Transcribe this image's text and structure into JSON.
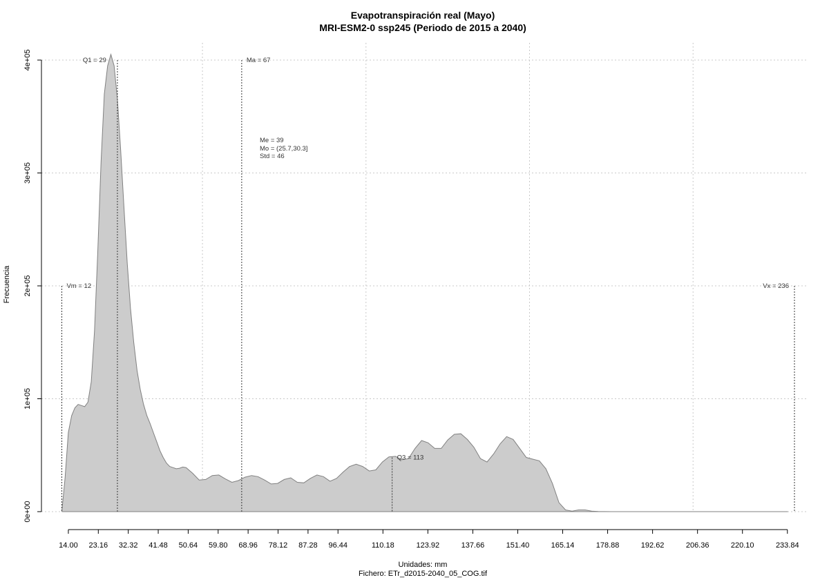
{
  "chart_data": {
    "type": "area",
    "title": "Evapotranspiración real (Mayo)",
    "subtitle": "MRI-ESM2-0 ssp245 (Periodo de 2015 a 2040)",
    "xlabel": "Unidades: mm",
    "ylabel": "Frecuencia",
    "footer": "Fichero: ETr_d2015-2040_05_COG.tif",
    "xlim": [
      10,
      236
    ],
    "ylim": [
      0,
      400000
    ],
    "x_ticks": [
      14.0,
      23.16,
      32.32,
      41.48,
      50.64,
      59.8,
      68.96,
      78.12,
      87.28,
      96.44,
      110.18,
      123.92,
      137.66,
      151.4,
      165.14,
      178.88,
      192.62,
      206.36,
      220.1,
      233.84
    ],
    "x_tick_labels": [
      "14.00",
      "23.16",
      "32.32",
      "41.48",
      "50.64",
      "59.80",
      "68.96",
      "78.12",
      "87.28",
      "96.44",
      "110.18",
      "123.92",
      "137.66",
      "151.40",
      "165.14",
      "178.88",
      "192.62",
      "206.36",
      "220.10",
      "233.84"
    ],
    "y_ticks": [
      0,
      100000,
      200000,
      300000,
      400000
    ],
    "y_tick_labels": [
      "0e+00",
      "1e+05",
      "2e+05",
      "3e+05",
      "4e+05"
    ],
    "x_grid": [
      55,
      105,
      155,
      205
    ],
    "grid": true,
    "fill_color": "#cccccc",
    "line_color": "#808080",
    "series": [
      {
        "x": [
          12,
          13,
          14,
          15,
          16,
          17,
          18,
          19,
          20,
          21,
          22,
          23,
          24,
          25,
          26,
          27,
          28,
          29,
          30,
          31,
          32,
          33,
          34,
          35,
          36,
          37,
          38,
          39,
          40,
          41,
          42,
          43,
          44,
          45,
          46,
          47,
          48,
          49,
          50,
          52,
          54,
          56,
          58,
          60,
          62,
          64,
          66,
          68,
          70,
          72,
          74,
          76,
          78,
          80,
          82,
          84,
          86,
          88,
          90,
          92,
          94,
          96,
          98,
          100,
          102,
          104,
          106,
          108,
          110,
          112,
          114,
          116,
          118,
          120,
          122,
          124,
          126,
          128,
          130,
          132,
          134,
          136,
          138,
          140,
          142,
          144,
          146,
          148,
          150,
          152,
          154,
          156,
          158,
          160,
          162,
          164,
          166,
          168,
          170,
          172,
          174,
          176,
          180,
          190,
          200,
          210,
          220,
          230,
          234
        ],
        "y": [
          0,
          30000,
          70000,
          85000,
          92000,
          95000,
          94000,
          93000,
          97000,
          115000,
          160000,
          230000,
          310000,
          370000,
          395000,
          405000,
          395000,
          365000,
          320000,
          270000,
          220000,
          180000,
          150000,
          125000,
          108000,
          95000,
          85000,
          78000,
          70000,
          62000,
          54000,
          48000,
          43000,
          40000,
          39000,
          38000,
          38500,
          39500,
          39000,
          34000,
          28000,
          28500,
          32000,
          32500,
          29000,
          26000,
          27500,
          30500,
          32000,
          31000,
          28000,
          24500,
          25000,
          28500,
          30000,
          26000,
          25500,
          29500,
          32500,
          31000,
          27000,
          29500,
          35000,
          40000,
          42000,
          40000,
          36000,
          37000,
          44000,
          48500,
          49000,
          46000,
          47000,
          56000,
          63000,
          61000,
          56000,
          56000,
          63500,
          68500,
          69000,
          64000,
          57000,
          47000,
          44000,
          51000,
          60000,
          66500,
          64000,
          56000,
          48000,
          46500,
          45000,
          38000,
          25000,
          8000,
          1500,
          500,
          1500,
          1500,
          500,
          100,
          0,
          0,
          0,
          0,
          0,
          0,
          0
        ]
      }
    ],
    "vlines": [
      {
        "label": "Vm = 12",
        "x": 12,
        "y_top": 200000
      },
      {
        "label": "Q1 = 29",
        "x": 29,
        "y_top": 400000
      },
      {
        "label": "Ma = 67",
        "x": 67,
        "y_top": 400000
      },
      {
        "label": "Q3 = 113",
        "x": 113,
        "y_top": 48000
      },
      {
        "label": "Vx = 236",
        "x": 236,
        "y_top": 200000
      }
    ],
    "stats": [
      "Me = 39",
      "Mo = (25.7,30.3]",
      "Std = 46"
    ]
  }
}
